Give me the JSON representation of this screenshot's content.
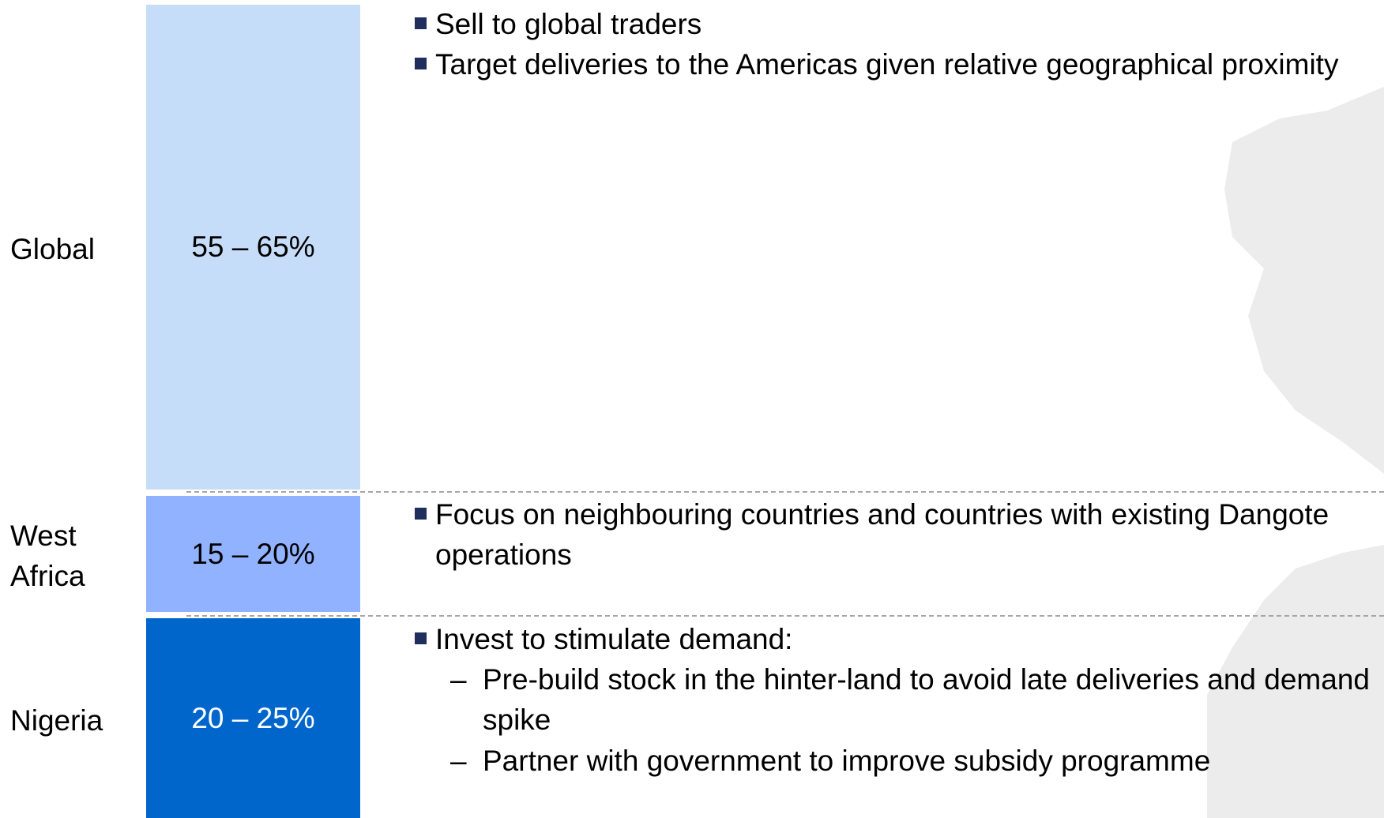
{
  "rows": [
    {
      "label": "Global",
      "share": "55 – 65%",
      "bullets": [
        "Sell to global traders",
        "Target deliveries to the Americas given relative geographical proximity"
      ]
    },
    {
      "label": "West Africa",
      "share": "15 – 20%",
      "bullets": [
        "Focus on neighbouring countries and countries with existing Dangote operations"
      ]
    },
    {
      "label": "Nigeria",
      "share": "20 – 25%",
      "bullets": [
        "Invest to stimulate demand:"
      ],
      "sub_bullets": [
        "Pre-build stock in the hinter-land to avoid late deliveries and demand spike",
        "Partner with government to improve subsidy programme"
      ]
    }
  ]
}
